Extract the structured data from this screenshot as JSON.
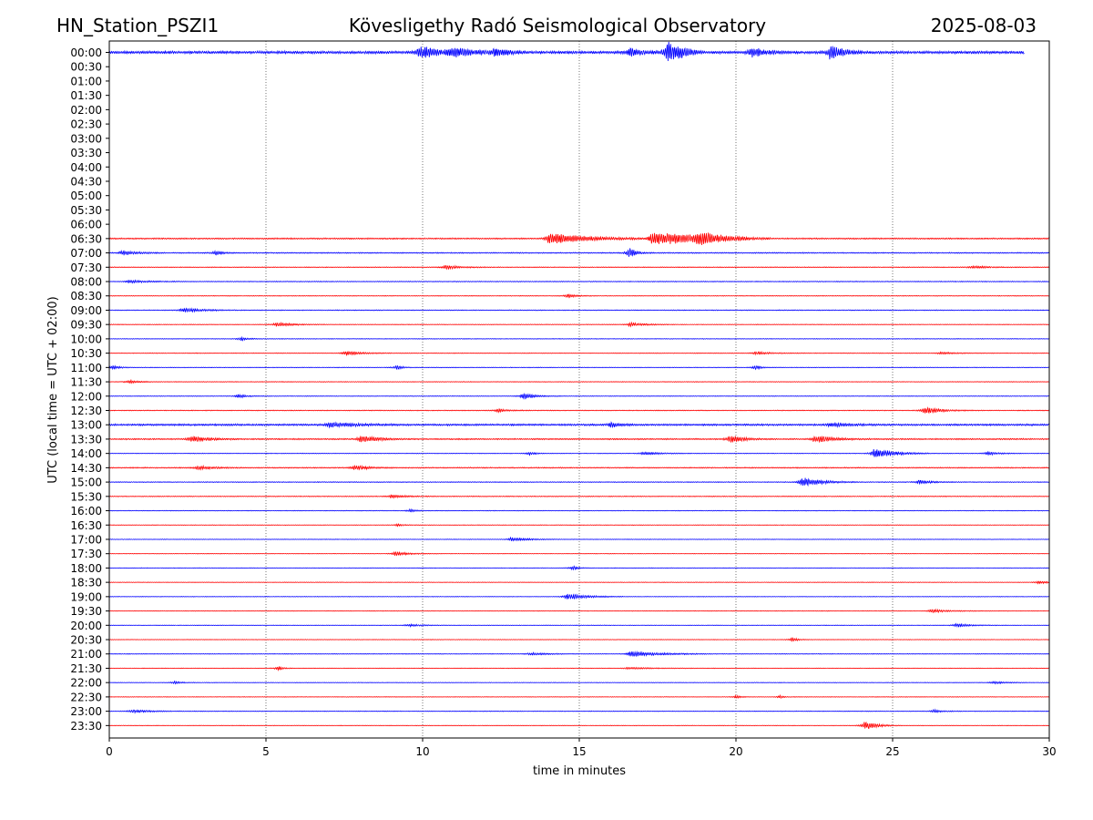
{
  "header": {
    "station": "HN_Station_PSZI1",
    "observatory": "Kövesligethy Radó Seismological Observatory",
    "date": "2025-08-03"
  },
  "colors": {
    "blue_trace": "#0000ff",
    "red_trace": "#ff0000",
    "grid": "#555555",
    "axes": "#000000"
  },
  "chart_data": {
    "type": "line",
    "subtype": "helicorder",
    "title": "Kövesligethy Radó Seismological Observatory",
    "xlabel": "time in minutes",
    "ylabel": "UTC (local time = UTC + 02:00)",
    "xlim": [
      0,
      30
    ],
    "x_ticks": [
      0,
      5,
      10,
      15,
      20,
      25,
      30
    ],
    "x_tick_labels": [
      "0",
      "5",
      "10",
      "15",
      "20",
      "25",
      "30"
    ],
    "vertical_gridlines_at": [
      5,
      10,
      15,
      20,
      25
    ],
    "row_labels": [
      "00:00",
      "00:30",
      "01:00",
      "01:30",
      "02:00",
      "02:30",
      "03:00",
      "03:30",
      "04:00",
      "04:30",
      "05:00",
      "05:30",
      "06:00",
      "06:30",
      "07:00",
      "07:30",
      "08:00",
      "08:30",
      "09:00",
      "09:30",
      "10:00",
      "10:30",
      "11:00",
      "11:30",
      "12:00",
      "12:30",
      "13:00",
      "13:30",
      "14:00",
      "14:30",
      "15:00",
      "15:30",
      "16:00",
      "16:30",
      "17:00",
      "17:30",
      "18:00",
      "18:30",
      "19:00",
      "19:30",
      "20:00",
      "20:30",
      "21:00",
      "21:30",
      "22:00",
      "22:30",
      "23:00",
      "23:30"
    ],
    "traces": [
      {
        "row": "00:00",
        "color": "blue",
        "start": 0,
        "end": 29.2,
        "noise": 0.5,
        "events": [
          [
            9.9,
            0.5,
            2
          ],
          [
            10.9,
            0.8,
            1.2
          ],
          [
            12.3,
            0.3,
            1.2
          ],
          [
            16.6,
            0.3,
            1.2
          ],
          [
            17.8,
            0.25,
            3.5
          ],
          [
            18.2,
            0.2,
            1.5
          ],
          [
            20.5,
            0.3,
            1.5
          ],
          [
            23.0,
            0.3,
            2.5
          ]
        ]
      },
      {
        "row": "06:30",
        "color": "red",
        "start": 0,
        "end": 30,
        "noise": 0.25,
        "events": [
          [
            14.0,
            1.2,
            1.6
          ],
          [
            17.3,
            1.6,
            2.0
          ],
          [
            18.8,
            0.6,
            1.5
          ]
        ]
      },
      {
        "row": "07:00",
        "color": "blue",
        "start": 0,
        "end": 30,
        "noise": 0.2,
        "events": [
          [
            0.4,
            0.4,
            0.7
          ],
          [
            3.4,
            0.1,
            0.8
          ],
          [
            16.6,
            0.1,
            1.8
          ]
        ]
      },
      {
        "row": "07:30",
        "color": "red",
        "start": 0,
        "end": 30,
        "noise": 0.15,
        "events": [
          [
            10.7,
            0.4,
            0.6
          ],
          [
            27.5,
            0.5,
            0.4
          ]
        ]
      },
      {
        "row": "08:00",
        "color": "blue",
        "start": 0,
        "end": 30,
        "noise": 0.15,
        "events": [
          [
            0.6,
            0.6,
            0.4
          ]
        ]
      },
      {
        "row": "08:30",
        "color": "red",
        "start": 0,
        "end": 30,
        "noise": 0.12,
        "events": [
          [
            14.6,
            0.2,
            0.6
          ]
        ]
      },
      {
        "row": "09:00",
        "color": "blue",
        "start": 0,
        "end": 30,
        "noise": 0.15,
        "events": [
          [
            2.3,
            0.6,
            0.6
          ]
        ]
      },
      {
        "row": "09:30",
        "color": "red",
        "start": 0,
        "end": 30,
        "noise": 0.12,
        "events": [
          [
            5.3,
            0.5,
            0.6
          ],
          [
            16.6,
            0.4,
            0.6
          ]
        ]
      },
      {
        "row": "10:00",
        "color": "blue",
        "start": 0,
        "end": 30,
        "noise": 0.12,
        "events": [
          [
            4.2,
            0.1,
            0.7
          ]
        ]
      },
      {
        "row": "10:30",
        "color": "red",
        "start": 0,
        "end": 30,
        "noise": 0.12,
        "events": [
          [
            7.5,
            0.5,
            0.6
          ],
          [
            20.6,
            0.5,
            0.4
          ],
          [
            26.5,
            0.5,
            0.3
          ]
        ]
      },
      {
        "row": "11:00",
        "color": "blue",
        "start": 0,
        "end": 30,
        "noise": 0.12,
        "events": [
          [
            0.1,
            0.1,
            0.8
          ],
          [
            9.2,
            0.05,
            0.9
          ],
          [
            20.6,
            0.1,
            0.8
          ]
        ]
      },
      {
        "row": "11:30",
        "color": "red",
        "start": 0,
        "end": 30,
        "noise": 0.12,
        "events": [
          [
            0.6,
            0.3,
            0.5
          ]
        ]
      },
      {
        "row": "12:00",
        "color": "blue",
        "start": 0,
        "end": 30,
        "noise": 0.12,
        "events": [
          [
            4.1,
            0.2,
            0.6
          ],
          [
            13.2,
            0.3,
            1.0
          ]
        ]
      },
      {
        "row": "12:30",
        "color": "red",
        "start": 0,
        "end": 30,
        "noise": 0.15,
        "events": [
          [
            12.4,
            0.2,
            0.6
          ],
          [
            26.0,
            0.5,
            1.0
          ]
        ]
      },
      {
        "row": "13:00",
        "color": "blue",
        "start": 0,
        "end": 30,
        "noise": 0.35,
        "events": [
          [
            7.0,
            0.9,
            0.6
          ],
          [
            16.0,
            0.2,
            0.7
          ],
          [
            23.0,
            0.6,
            0.5
          ]
        ]
      },
      {
        "row": "13:30",
        "color": "red",
        "start": 0,
        "end": 30,
        "noise": 0.25,
        "events": [
          [
            2.6,
            0.5,
            0.8
          ],
          [
            8.0,
            0.5,
            1.0
          ],
          [
            19.8,
            0.3,
            1.2
          ],
          [
            22.5,
            0.6,
            1.0
          ]
        ]
      },
      {
        "row": "14:00",
        "color": "blue",
        "start": 0,
        "end": 30,
        "noise": 0.12,
        "events": [
          [
            13.4,
            0.1,
            0.6
          ],
          [
            17.0,
            0.5,
            0.5
          ],
          [
            24.4,
            0.6,
            1.6
          ],
          [
            28.0,
            0.3,
            0.6
          ]
        ]
      },
      {
        "row": "14:30",
        "color": "red",
        "start": 0,
        "end": 30,
        "noise": 0.2,
        "events": [
          [
            2.8,
            0.4,
            0.6
          ],
          [
            7.8,
            0.4,
            0.7
          ]
        ]
      },
      {
        "row": "15:00",
        "color": "blue",
        "start": 0,
        "end": 30,
        "noise": 0.15,
        "events": [
          [
            22.1,
            0.6,
            1.4
          ],
          [
            25.8,
            0.4,
            0.6
          ]
        ]
      },
      {
        "row": "15:30",
        "color": "red",
        "start": 0,
        "end": 30,
        "noise": 0.15,
        "events": [
          [
            9.0,
            0.4,
            0.5
          ]
        ]
      },
      {
        "row": "16:00",
        "color": "blue",
        "start": 0,
        "end": 30,
        "noise": 0.12,
        "events": [
          [
            9.6,
            0.1,
            0.5
          ]
        ]
      },
      {
        "row": "16:30",
        "color": "red",
        "start": 0,
        "end": 30,
        "noise": 0.1,
        "events": [
          [
            9.2,
            0.1,
            0.4
          ]
        ]
      },
      {
        "row": "17:00",
        "color": "blue",
        "start": 0,
        "end": 30,
        "noise": 0.1,
        "events": [
          [
            12.8,
            0.5,
            0.6
          ]
        ]
      },
      {
        "row": "17:30",
        "color": "red",
        "start": 0,
        "end": 30,
        "noise": 0.1,
        "events": [
          [
            9.1,
            0.4,
            0.6
          ]
        ]
      },
      {
        "row": "18:00",
        "color": "blue",
        "start": 0,
        "end": 30,
        "noise": 0.1,
        "events": [
          [
            14.8,
            0.05,
            0.8
          ]
        ]
      },
      {
        "row": "18:30",
        "color": "red",
        "start": 0,
        "end": 30,
        "noise": 0.1,
        "events": [
          [
            29.6,
            0.5,
            0.4
          ]
        ]
      },
      {
        "row": "19:00",
        "color": "blue",
        "start": 0,
        "end": 30,
        "noise": 0.1,
        "events": [
          [
            14.6,
            0.6,
            1.0
          ]
        ]
      },
      {
        "row": "19:30",
        "color": "red",
        "start": 0,
        "end": 30,
        "noise": 0.1,
        "events": [
          [
            26.2,
            0.5,
            0.5
          ]
        ]
      },
      {
        "row": "20:00",
        "color": "blue",
        "start": 0,
        "end": 30,
        "noise": 0.1,
        "events": [
          [
            9.5,
            0.4,
            0.4
          ],
          [
            27.0,
            0.4,
            0.6
          ]
        ]
      },
      {
        "row": "20:30",
        "color": "red",
        "start": 0,
        "end": 30,
        "noise": 0.1,
        "events": [
          [
            21.8,
            0.05,
            0.8
          ]
        ]
      },
      {
        "row": "21:00",
        "color": "blue",
        "start": 0,
        "end": 30,
        "noise": 0.12,
        "events": [
          [
            13.4,
            0.5,
            0.4
          ],
          [
            16.6,
            1.0,
            0.8
          ]
        ]
      },
      {
        "row": "21:30",
        "color": "red",
        "start": 0,
        "end": 30,
        "noise": 0.1,
        "events": [
          [
            5.4,
            0.05,
            0.8
          ],
          [
            16.5,
            0.8,
            0.3
          ]
        ]
      },
      {
        "row": "22:00",
        "color": "blue",
        "start": 0,
        "end": 30,
        "noise": 0.1,
        "events": [
          [
            2.1,
            0.1,
            0.6
          ],
          [
            28.2,
            0.3,
            0.4
          ]
        ]
      },
      {
        "row": "22:30",
        "color": "red",
        "start": 0,
        "end": 30,
        "noise": 0.1,
        "events": [
          [
            20.0,
            0.05,
            0.5
          ],
          [
            21.4,
            0.05,
            0.5
          ]
        ]
      },
      {
        "row": "23:00",
        "color": "blue",
        "start": 0,
        "end": 30,
        "noise": 0.12,
        "events": [
          [
            0.7,
            0.5,
            0.5
          ],
          [
            26.3,
            0.2,
            0.5
          ]
        ]
      },
      {
        "row": "23:30",
        "color": "red",
        "start": 0,
        "end": 30,
        "noise": 0.1,
        "events": [
          [
            24.1,
            0.3,
            1.4
          ]
        ]
      }
    ]
  }
}
